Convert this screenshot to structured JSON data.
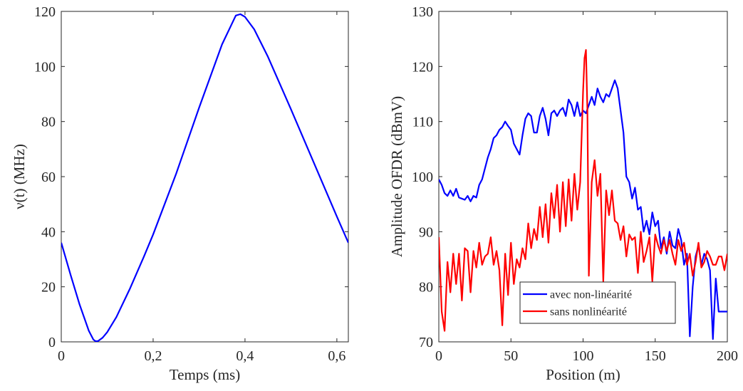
{
  "chart_data": [
    {
      "type": "line",
      "xlabel": "Temps (ms)",
      "ylabel": "ν(t) (MHz)",
      "xlim": [
        0,
        0.625
      ],
      "ylim": [
        0,
        120
      ],
      "grid": false,
      "xticks": [
        0,
        0.2,
        0.4,
        0.6
      ],
      "xtick_labels": [
        "0",
        "0,2",
        "0,4",
        "0,6"
      ],
      "yticks": [
        0,
        20,
        40,
        60,
        80,
        100,
        120
      ],
      "ytick_labels": [
        "0",
        "20",
        "40",
        "60",
        "80",
        "100",
        "120"
      ],
      "color": "#0000ff",
      "series": [
        {
          "x": [
            0,
            0.02,
            0.04,
            0.06,
            0.07,
            0.075,
            0.08,
            0.09,
            0.1,
            0.12,
            0.15,
            0.18,
            0.2,
            0.25,
            0.3,
            0.35,
            0.37,
            0.38,
            0.39,
            0.4,
            0.42,
            0.45,
            0.5,
            0.55,
            0.6,
            0.625
          ],
          "y": [
            36,
            24.5,
            13.5,
            4,
            0.8,
            0.2,
            0.3,
            1.5,
            3.5,
            9,
            19.5,
            31,
            39,
            61,
            85,
            108,
            115,
            118.5,
            119,
            118,
            113.5,
            103.5,
            84.5,
            65,
            45.5,
            36
          ]
        }
      ]
    },
    {
      "type": "line",
      "xlabel": "Position (m)",
      "ylabel": "Amplitude OFDR (dBmV)",
      "xlim": [
        0,
        200
      ],
      "ylim": [
        70,
        130
      ],
      "grid": false,
      "xticks": [
        0,
        50,
        100,
        150,
        200
      ],
      "xtick_labels": [
        "0",
        "50",
        "100",
        "150",
        "200"
      ],
      "yticks": [
        70,
        80,
        90,
        100,
        110,
        120,
        130
      ],
      "ytick_labels": [
        "70",
        "80",
        "90",
        "100",
        "110",
        "120",
        "130"
      ],
      "legend": "bottom-center",
      "series": [
        {
          "name": "avec non-linéarité",
          "color": "#0000ff",
          "x": [
            0,
            2,
            4,
            6,
            8,
            10,
            12,
            14,
            16,
            18,
            20,
            22,
            24,
            26,
            28,
            30,
            32,
            34,
            36,
            38,
            40,
            42,
            44,
            46,
            48,
            50,
            52,
            54,
            56,
            58,
            60,
            62,
            64,
            66,
            68,
            70,
            72,
            74,
            76,
            78,
            80,
            82,
            84,
            86,
            88,
            90,
            92,
            94,
            96,
            98,
            100,
            102,
            104,
            106,
            108,
            110,
            112,
            114,
            116,
            118,
            120,
            122,
            124,
            126,
            128,
            130,
            132,
            134,
            136,
            138,
            140,
            142,
            144,
            146,
            148,
            150,
            152,
            154,
            156,
            158,
            160,
            162,
            164,
            166,
            168,
            170,
            172,
            174,
            176,
            178,
            180,
            182,
            184,
            186,
            188,
            190,
            192,
            194,
            196,
            198,
            200
          ],
          "y": [
            99.5,
            98.5,
            97,
            96.5,
            97.5,
            96.5,
            97.8,
            96.2,
            96,
            95.8,
            96.5,
            95.5,
            96.5,
            96.2,
            98.5,
            99.5,
            101.5,
            103.5,
            105,
            107,
            107.5,
            108.5,
            109,
            110,
            109.2,
            108.5,
            106,
            105,
            104,
            107.5,
            110.5,
            111.5,
            111,
            108,
            108,
            111,
            112.5,
            110.5,
            107.5,
            111.5,
            112,
            111,
            112,
            112.5,
            111,
            114,
            113,
            111,
            113.5,
            111,
            112,
            111.5,
            113,
            114.5,
            113,
            116,
            114.5,
            113.5,
            115,
            114.5,
            116,
            117.5,
            116,
            112,
            108,
            100,
            99,
            96,
            98,
            94,
            94.5,
            90,
            92,
            89.5,
            93.5,
            91,
            92,
            87,
            89,
            86,
            90,
            87.5,
            87,
            90.5,
            88.5,
            84,
            86,
            71,
            80,
            85.5,
            87.5,
            84,
            86,
            85,
            83,
            70.5,
            81.5,
            75.5,
            75.5,
            75.5,
            75.5
          ],
          "x_note": ""
        },
        {
          "name": "sans nonlinéarité",
          "color": "#ff0000",
          "x": [
            0,
            2,
            4,
            6,
            8,
            10,
            12,
            14,
            16,
            18,
            20,
            22,
            24,
            26,
            28,
            30,
            32,
            34,
            36,
            38,
            40,
            42,
            44,
            46,
            48,
            50,
            52,
            54,
            56,
            58,
            60,
            62,
            64,
            66,
            68,
            70,
            72,
            74,
            76,
            78,
            80,
            82,
            84,
            86,
            88,
            90,
            92,
            94,
            96,
            98,
            100,
            101,
            102,
            103,
            104,
            106,
            108,
            110,
            112,
            114,
            116,
            118,
            120,
            122,
            124,
            126,
            128,
            130,
            132,
            134,
            136,
            138,
            140,
            142,
            144,
            146,
            148,
            150,
            152,
            154,
            156,
            158,
            160,
            162,
            164,
            166,
            168,
            170,
            172,
            174,
            176,
            178,
            180,
            182,
            184,
            186,
            188,
            190,
            192,
            194,
            196,
            198,
            200
          ],
          "y": [
            89,
            75.5,
            72,
            84.5,
            79,
            86,
            80.5,
            86,
            77.5,
            87,
            86.5,
            79,
            86.5,
            83.5,
            88,
            84,
            85.5,
            86,
            89,
            84,
            86.5,
            83,
            73,
            86,
            78.5,
            88,
            80.5,
            85,
            83.5,
            87,
            85,
            91.5,
            87,
            90.5,
            88.5,
            94.5,
            89,
            95,
            88,
            97,
            92.5,
            98.5,
            90,
            99,
            91,
            99.5,
            92,
            100.5,
            94,
            99,
            115.5,
            121.5,
            123,
            112,
            82,
            99,
            103,
            96.5,
            100.5,
            81,
            97.5,
            93,
            97.5,
            92,
            91.5,
            88.5,
            91,
            85.5,
            89.5,
            88.5,
            89,
            82.5,
            90,
            84.5,
            86.5,
            89,
            81,
            89.5,
            87.5,
            86,
            88.5,
            86.5,
            88.5,
            86,
            84,
            88.5,
            86.5,
            88,
            84,
            86,
            82,
            84.5,
            88,
            83.5,
            84.5,
            86.5,
            85.5,
            84,
            84,
            85.5,
            85.5,
            83,
            86
          ],
          "x_note": ""
        }
      ]
    }
  ]
}
